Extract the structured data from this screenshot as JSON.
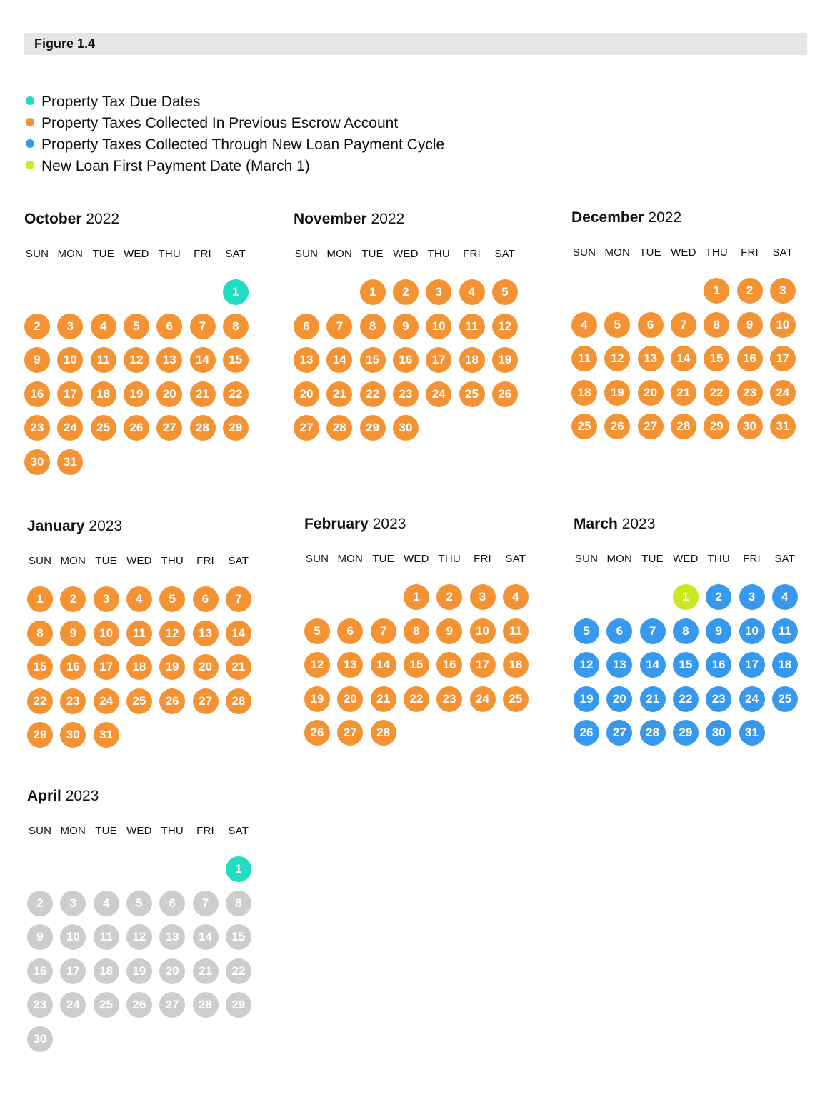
{
  "figure": {
    "label": "Figure 1.4"
  },
  "colors": {
    "due": "#1fdcc3",
    "previous_escrow": "#f39333",
    "new_loan_cycle": "#3699ee",
    "first_payment": "#cbe81f",
    "inactive": "#cdcdcd",
    "header_bg": "#e6e6e6"
  },
  "legend": [
    {
      "status": "due",
      "label": "Property Tax Due Dates"
    },
    {
      "status": "previous_escrow",
      "label": "Property Taxes Collected In Previous Escrow Account"
    },
    {
      "status": "new_loan_cycle",
      "label": "Property Taxes Collected Through New Loan Payment Cycle"
    },
    {
      "status": "first_payment",
      "label": "New Loan First Payment Date (March 1)"
    }
  ],
  "weekdays": [
    "SUN",
    "MON",
    "TUE",
    "WED",
    "THU",
    "FRI",
    "SAT"
  ],
  "months": [
    {
      "name": "October",
      "year": "2022",
      "start_weekday": 6,
      "days_in_month": 31,
      "default_status": "previous_escrow",
      "day_status": {
        "1": "due"
      }
    },
    {
      "name": "November",
      "year": "2022",
      "start_weekday": 2,
      "days_in_month": 30,
      "default_status": "previous_escrow",
      "day_status": {}
    },
    {
      "name": "December",
      "year": "2022",
      "start_weekday": 4,
      "days_in_month": 31,
      "default_status": "previous_escrow",
      "day_status": {}
    },
    {
      "name": "January",
      "year": "2023",
      "start_weekday": 0,
      "days_in_month": 31,
      "default_status": "previous_escrow",
      "day_status": {}
    },
    {
      "name": "February",
      "year": "2023",
      "start_weekday": 3,
      "days_in_month": 28,
      "default_status": "previous_escrow",
      "day_status": {}
    },
    {
      "name": "March",
      "year": "2023",
      "start_weekday": 3,
      "days_in_month": 31,
      "default_status": "new_loan_cycle",
      "day_status": {
        "1": "first_payment"
      }
    },
    {
      "name": "April",
      "year": "2023",
      "start_weekday": 6,
      "days_in_month": 30,
      "default_status": "inactive",
      "day_status": {
        "1": "due"
      }
    }
  ]
}
